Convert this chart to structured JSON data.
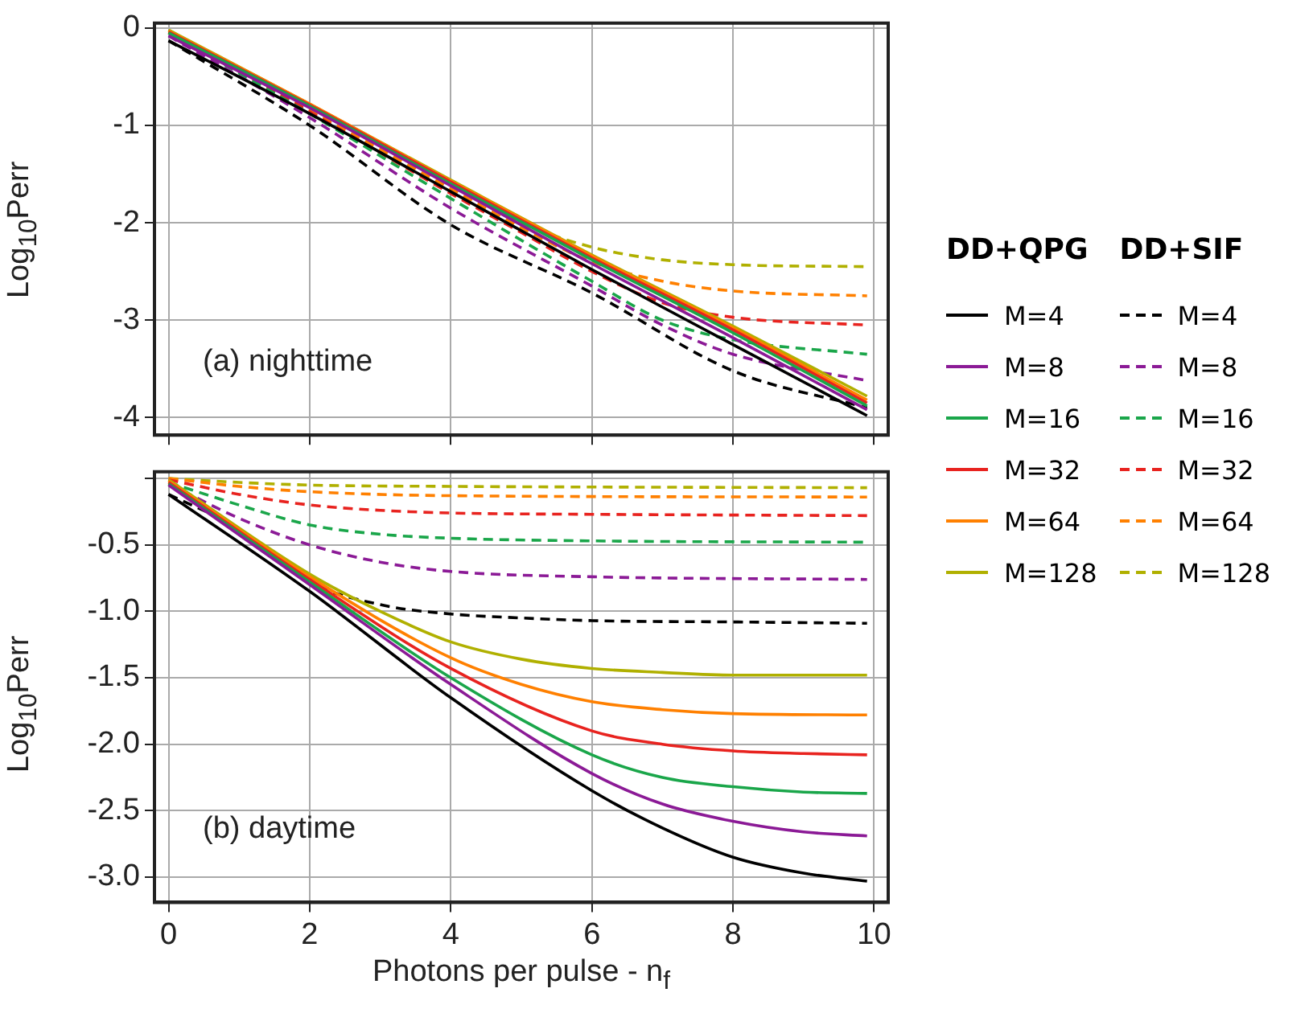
{
  "chart_data": [
    {
      "type": "line",
      "ylabel": "Log$_{10}$Perr",
      "annotations": [
        "(a) nighttime"
      ],
      "legend": "right",
      "legend_title": "DD+QPG",
      "grid": true,
      "tick_labels": "y",
      "xlim": [
        -0.2,
        10.2
      ],
      "xticks": [
        0,
        2,
        4,
        6,
        8,
        10
      ],
      "ylim": [
        -4.18,
        0.05
      ],
      "yticks": [
        0,
        -1,
        -2,
        -3,
        -4
      ],
      "series": [
        {
          "name": "M=4",
          "color": "#000000",
          "line_style": "solid",
          "x": [
            0,
            2,
            4,
            6,
            8,
            9.9
          ],
          "values": [
            -0.13,
            -0.88,
            -1.68,
            -2.48,
            -3.25,
            -3.98
          ]
        },
        {
          "name": "M=8",
          "color": "#8b1a96",
          "line_style": "solid",
          "x": [
            0,
            2,
            4,
            6,
            8,
            9.9
          ],
          "values": [
            -0.08,
            -0.82,
            -1.62,
            -2.42,
            -3.18,
            -3.92
          ]
        },
        {
          "name": "M=16",
          "color": "#1aa64a",
          "line_style": "solid",
          "x": [
            0,
            2,
            4,
            6,
            8,
            9.9
          ],
          "values": [
            -0.05,
            -0.8,
            -1.6,
            -2.38,
            -3.13,
            -3.88
          ]
        },
        {
          "name": "M=32",
          "color": "#e8231f",
          "line_style": "solid",
          "x": [
            0,
            2,
            4,
            6,
            8,
            9.9
          ],
          "values": [
            -0.04,
            -0.79,
            -1.58,
            -2.36,
            -3.1,
            -3.85
          ]
        },
        {
          "name": "M=64",
          "color": "#ff8000",
          "line_style": "solid",
          "x": [
            0,
            2,
            4,
            6,
            8,
            9.9
          ],
          "values": [
            -0.03,
            -0.78,
            -1.57,
            -2.34,
            -3.08,
            -3.82
          ]
        },
        {
          "name": "M=128",
          "color": "#b0b000",
          "line_style": "solid",
          "x": [
            0,
            2,
            4,
            6,
            8,
            9.9
          ],
          "values": [
            -0.02,
            -0.78,
            -1.56,
            -2.33,
            -3.06,
            -3.78
          ]
        },
        {
          "name": "M=4",
          "color": "#000000",
          "line_style": "dashed",
          "x": [
            0,
            2,
            4,
            6,
            8,
            9.9
          ],
          "values": [
            -0.13,
            -1.0,
            -2.02,
            -2.72,
            -3.52,
            -3.9
          ]
        },
        {
          "name": "M=8",
          "color": "#8b1a96",
          "line_style": "dashed",
          "x": [
            0,
            2,
            4,
            6,
            7,
            8,
            9.9
          ],
          "values": [
            -0.08,
            -0.92,
            -1.85,
            -2.65,
            -3.05,
            -3.35,
            -3.62
          ]
        },
        {
          "name": "M=16",
          "color": "#1aa64a",
          "line_style": "dashed",
          "x": [
            0,
            2,
            4,
            6,
            7,
            8,
            9.9
          ],
          "values": [
            -0.05,
            -0.88,
            -1.75,
            -2.6,
            -3.0,
            -3.2,
            -3.35
          ]
        },
        {
          "name": "M=32",
          "color": "#e8231f",
          "line_style": "dashed",
          "x": [
            0,
            2,
            4,
            5,
            6,
            7,
            8,
            9.9
          ],
          "values": [
            -0.04,
            -0.86,
            -1.7,
            -2.1,
            -2.5,
            -2.82,
            -2.97,
            -3.05
          ]
        },
        {
          "name": "M=64",
          "color": "#ff8000",
          "line_style": "dashed",
          "x": [
            0,
            2,
            4,
            5,
            6,
            7,
            8,
            9.9
          ],
          "values": [
            -0.03,
            -0.84,
            -1.65,
            -2.05,
            -2.4,
            -2.6,
            -2.7,
            -2.75
          ]
        },
        {
          "name": "M=128",
          "color": "#b0b000",
          "line_style": "dashed",
          "x": [
            0,
            2,
            4,
            5,
            6,
            7,
            8,
            9.9
          ],
          "values": [
            -0.02,
            -0.82,
            -1.6,
            -2.0,
            -2.25,
            -2.38,
            -2.43,
            -2.45
          ]
        }
      ]
    },
    {
      "type": "line",
      "xlabel": "Photons per pulse - n$_{f}$",
      "ylabel": "Log$_{10}$Perr",
      "annotations": [
        "(b) daytime"
      ],
      "legend": "right",
      "legend_title": "DD+SIF",
      "grid": true,
      "xlim": [
        -0.2,
        10.2
      ],
      "xticks": [
        0,
        2,
        4,
        6,
        8,
        10
      ],
      "ylim": [
        -3.19,
        0.05
      ],
      "yticks": [
        {
          "value": 0,
          "label": null
        },
        -0.5,
        {
          "value": -1,
          "label": "-1.0"
        },
        -1.5,
        {
          "value": -2,
          "label": "-2.0"
        },
        -2.5,
        {
          "value": -3,
          "label": "-3.0"
        }
      ],
      "series": [
        {
          "color": "#000000",
          "line_style": "solid",
          "x": [
            0,
            2,
            4,
            6,
            7,
            8,
            9,
            9.9
          ],
          "values": [
            -0.12,
            -0.85,
            -1.65,
            -2.35,
            -2.63,
            -2.85,
            -2.97,
            -3.03
          ]
        },
        {
          "color": "#8b1a96",
          "line_style": "solid",
          "x": [
            0,
            2,
            4,
            6,
            7,
            8,
            9,
            9.9
          ],
          "values": [
            -0.05,
            -0.8,
            -1.55,
            -2.22,
            -2.45,
            -2.58,
            -2.66,
            -2.69
          ]
        },
        {
          "color": "#1aa64a",
          "line_style": "solid",
          "x": [
            0,
            2,
            4,
            6,
            7,
            8,
            9,
            9.9
          ],
          "values": [
            -0.04,
            -0.78,
            -1.5,
            -2.08,
            -2.25,
            -2.32,
            -2.36,
            -2.37
          ]
        },
        {
          "color": "#e8231f",
          "line_style": "solid",
          "x": [
            0,
            2,
            4,
            6,
            7,
            8,
            9,
            9.9
          ],
          "values": [
            -0.03,
            -0.76,
            -1.43,
            -1.9,
            -2.0,
            -2.05,
            -2.07,
            -2.08
          ]
        },
        {
          "color": "#ff8000",
          "line_style": "solid",
          "x": [
            0,
            2,
            4,
            5,
            6,
            7,
            8,
            9.9
          ],
          "values": [
            -0.02,
            -0.74,
            -1.35,
            -1.55,
            -1.68,
            -1.74,
            -1.77,
            -1.78
          ]
        },
        {
          "color": "#b0b000",
          "line_style": "solid",
          "x": [
            0,
            2,
            3,
            4,
            5,
            6,
            7,
            8,
            9.9
          ],
          "values": [
            -0.01,
            -0.72,
            -1.0,
            -1.23,
            -1.36,
            -1.43,
            -1.46,
            -1.48,
            -1.48
          ]
        },
        {
          "color": "#000000",
          "line_style": "dashed",
          "x": [
            0,
            1,
            2,
            3,
            4,
            5,
            6,
            8,
            9.9
          ],
          "values": [
            -0.12,
            -0.38,
            -0.78,
            -0.95,
            -1.02,
            -1.05,
            -1.07,
            -1.08,
            -1.09
          ]
        },
        {
          "color": "#8b1a96",
          "line_style": "dashed",
          "x": [
            0,
            1,
            2,
            3,
            4,
            6,
            9.9
          ],
          "values": [
            -0.04,
            -0.3,
            -0.5,
            -0.63,
            -0.7,
            -0.74,
            -0.76
          ]
        },
        {
          "color": "#1aa64a",
          "line_style": "dashed",
          "x": [
            0,
            1,
            2,
            3,
            4,
            6,
            9.9
          ],
          "values": [
            -0.03,
            -0.2,
            -0.35,
            -0.42,
            -0.45,
            -0.47,
            -0.48
          ]
        },
        {
          "color": "#e8231f",
          "line_style": "dashed",
          "x": [
            0,
            1,
            2,
            3,
            4,
            6,
            9.9
          ],
          "values": [
            -0.01,
            -0.12,
            -0.2,
            -0.24,
            -0.26,
            -0.27,
            -0.28
          ]
        },
        {
          "color": "#ff8000",
          "line_style": "dashed",
          "x": [
            0,
            1,
            2,
            4,
            9.9
          ],
          "values": [
            0,
            -0.06,
            -0.1,
            -0.13,
            -0.14
          ]
        },
        {
          "color": "#b0b000",
          "line_style": "dashed",
          "x": [
            0,
            1,
            2,
            4,
            9.9
          ],
          "values": [
            0,
            -0.03,
            -0.05,
            -0.06,
            -0.07
          ]
        }
      ]
    }
  ]
}
